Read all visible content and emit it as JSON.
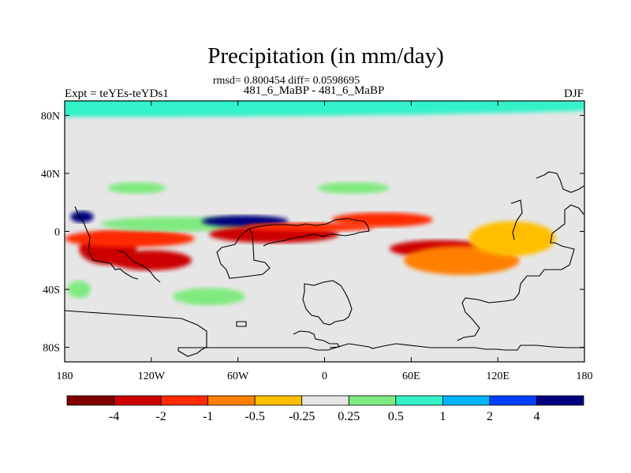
{
  "chart_data": {
    "type": "heatmap",
    "title": "Precipitation (in mm/day)",
    "subtitle": "rmsd= 0.800454 diff= 0.0598695",
    "left_label": "Expt = teYEs-teYDs1",
    "center_label": "481_6_MaBP - 481_6_MaBP",
    "right_label": "DJF",
    "xlim": [
      -180,
      180
    ],
    "ylim": [
      -90,
      90
    ],
    "x_ticks": [
      {
        "value": -180,
        "label": "180"
      },
      {
        "value": -120,
        "label": "120W"
      },
      {
        "value": -60,
        "label": "60W"
      },
      {
        "value": 0,
        "label": "0"
      },
      {
        "value": 60,
        "label": "60E"
      },
      {
        "value": 120,
        "label": "120E"
      },
      {
        "value": 180,
        "label": "180"
      }
    ],
    "y_ticks": [
      {
        "value": 80,
        "label": "80N"
      },
      {
        "value": 40,
        "label": "40N"
      },
      {
        "value": 0,
        "label": "0"
      },
      {
        "value": -40,
        "label": "40S"
      },
      {
        "value": -80,
        "label": "80S"
      }
    ],
    "colorbar": {
      "levels": [
        "-4",
        "-2",
        "-1",
        "-0.5",
        "-0.25",
        "0.25",
        "0.5",
        "1",
        "2",
        "4"
      ],
      "colors": [
        "#800000",
        "#cc0000",
        "#ff2a00",
        "#ff7f00",
        "#ffbf00",
        "#e6e6e6",
        "#7fea7f",
        "#33f2c8",
        "#00b3ff",
        "#0040ff",
        "#00007f"
      ]
    },
    "anomalies": [
      {
        "lon": -175,
        "lat": 87,
        "w": 400,
        "h": 8,
        "level": 7
      },
      {
        "lon": -150,
        "lat": -12,
        "w": 20,
        "h": 11,
        "level": 1
      },
      {
        "lon": -120,
        "lat": -20,
        "w": 28,
        "h": 7,
        "level": 1
      },
      {
        "lon": -135,
        "lat": -5,
        "w": 45,
        "h": 6,
        "level": 2
      },
      {
        "lon": -100,
        "lat": 5,
        "w": 55,
        "h": 5,
        "level": 6
      },
      {
        "lon": -55,
        "lat": 7,
        "w": 30,
        "h": 4,
        "level": 10
      },
      {
        "lon": -35,
        "lat": -2,
        "w": 45,
        "h": 6,
        "level": 1
      },
      {
        "lon": -10,
        "lat": 3,
        "w": 45,
        "h": 3,
        "level": 2
      },
      {
        "lon": 40,
        "lat": 8,
        "w": 35,
        "h": 5,
        "level": 2
      },
      {
        "lon": 80,
        "lat": -12,
        "w": 35,
        "h": 6,
        "level": 1
      },
      {
        "lon": 95,
        "lat": -20,
        "w": 40,
        "h": 10,
        "level": 3
      },
      {
        "lon": -168,
        "lat": 10,
        "w": 8,
        "h": 4,
        "level": 10
      },
      {
        "lon": 130,
        "lat": -5,
        "w": 30,
        "h": 12,
        "level": 4
      },
      {
        "lon": -80,
        "lat": -45,
        "w": 25,
        "h": 6,
        "level": 6
      },
      {
        "lon": -170,
        "lat": -40,
        "w": 8,
        "h": 6,
        "level": 6
      },
      {
        "lon": -130,
        "lat": 30,
        "w": 20,
        "h": 4,
        "level": 6
      },
      {
        "lon": 20,
        "lat": 30,
        "w": 25,
        "h": 4,
        "level": 6
      }
    ]
  }
}
